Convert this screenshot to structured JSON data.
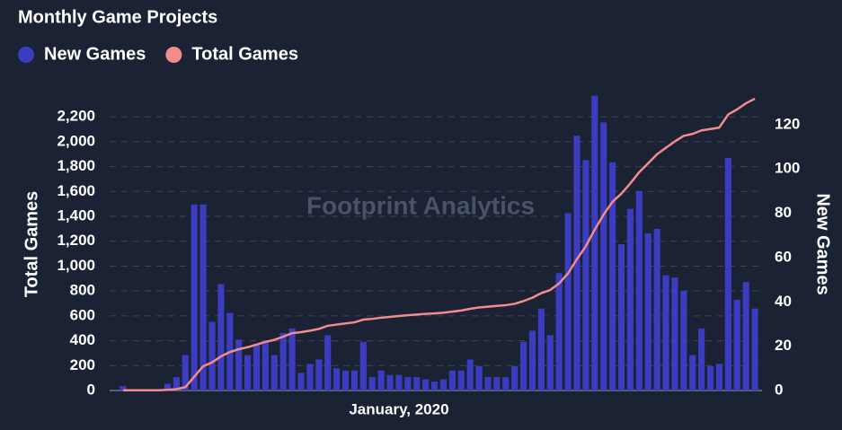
{
  "chart_data": {
    "type": "bar",
    "title": "Monthly Game Projects",
    "watermark": "Footprint Analytics",
    "y_label": "Total Games",
    "y2_label": "New Games",
    "categories": [
      null,
      null,
      null,
      null,
      null,
      null,
      null,
      null,
      null,
      null,
      null,
      null,
      null,
      null,
      null,
      null,
      null,
      null,
      null,
      null,
      null,
      null,
      null,
      null,
      null,
      null,
      null,
      null,
      null,
      null,
      null,
      "January, 2020",
      null,
      null,
      null,
      null,
      null,
      null,
      null,
      null,
      null,
      null,
      null,
      null,
      null,
      null,
      null,
      null,
      null,
      null,
      null,
      null,
      null,
      null,
      null,
      null,
      null,
      null,
      null,
      null,
      null,
      null,
      null,
      null,
      null,
      null,
      null,
      null,
      null,
      null,
      null,
      null
    ],
    "series": [
      {
        "name": "New Games",
        "type": "bar",
        "axis": "y2",
        "color": "#3c3cc0",
        "values": [
          2,
          0,
          0,
          0,
          0,
          3,
          6,
          16,
          84,
          84,
          31,
          48,
          35,
          23,
          16,
          21,
          22,
          16,
          26,
          28,
          8,
          12,
          14,
          25,
          10,
          9,
          9,
          22,
          6,
          9,
          7,
          7,
          6,
          6,
          5,
          4,
          5,
          9,
          9,
          14,
          11,
          6,
          6,
          6,
          11,
          22,
          27,
          37,
          25,
          53,
          80,
          115,
          104,
          133,
          121,
          103,
          66,
          82,
          90,
          71,
          73,
          52,
          51,
          45,
          16,
          28,
          11,
          12,
          105,
          41,
          49,
          37
        ]
      },
      {
        "name": "Total Games",
        "type": "line",
        "axis": "y",
        "color": "#f08c8c",
        "values": [
          2,
          2,
          2,
          2,
          2,
          5,
          11,
          27,
          111,
          195,
          226,
          274,
          309,
          332,
          348,
          369,
          391,
          407,
          433,
          461,
          469,
          481,
          495,
          520,
          530,
          539,
          548,
          570,
          576,
          585,
          592,
          599,
          605,
          611,
          616,
          620,
          625,
          634,
          643,
          657,
          668,
          674,
          680,
          686,
          697,
          719,
          746,
          783,
          808,
          861,
          941,
          1056,
          1160,
          1293,
          1414,
          1517,
          1583,
          1665,
          1755,
          1826,
          1899,
          1951,
          2002,
          2047,
          2063,
          2091,
          2102,
          2114,
          2219,
          2260,
          2309,
          2346
        ]
      }
    ],
    "ylim": [
      0,
      2360
    ],
    "yticks": [
      0,
      200,
      400,
      600,
      800,
      {
        "value": 1000,
        "label": "1,000"
      },
      {
        "value": 1200,
        "label": "1,200"
      },
      {
        "value": 1400,
        "label": "1,400"
      },
      {
        "value": 1600,
        "label": "1,600"
      },
      {
        "value": 1800,
        "label": "1,800"
      },
      {
        "value": 2000,
        "label": "2,000"
      },
      {
        "value": 2200,
        "label": "2,200"
      }
    ],
    "y2lim": [
      0,
      132.5
    ],
    "y2ticks": [
      0,
      20,
      40,
      60,
      80,
      100,
      120
    ],
    "grid": true
  }
}
